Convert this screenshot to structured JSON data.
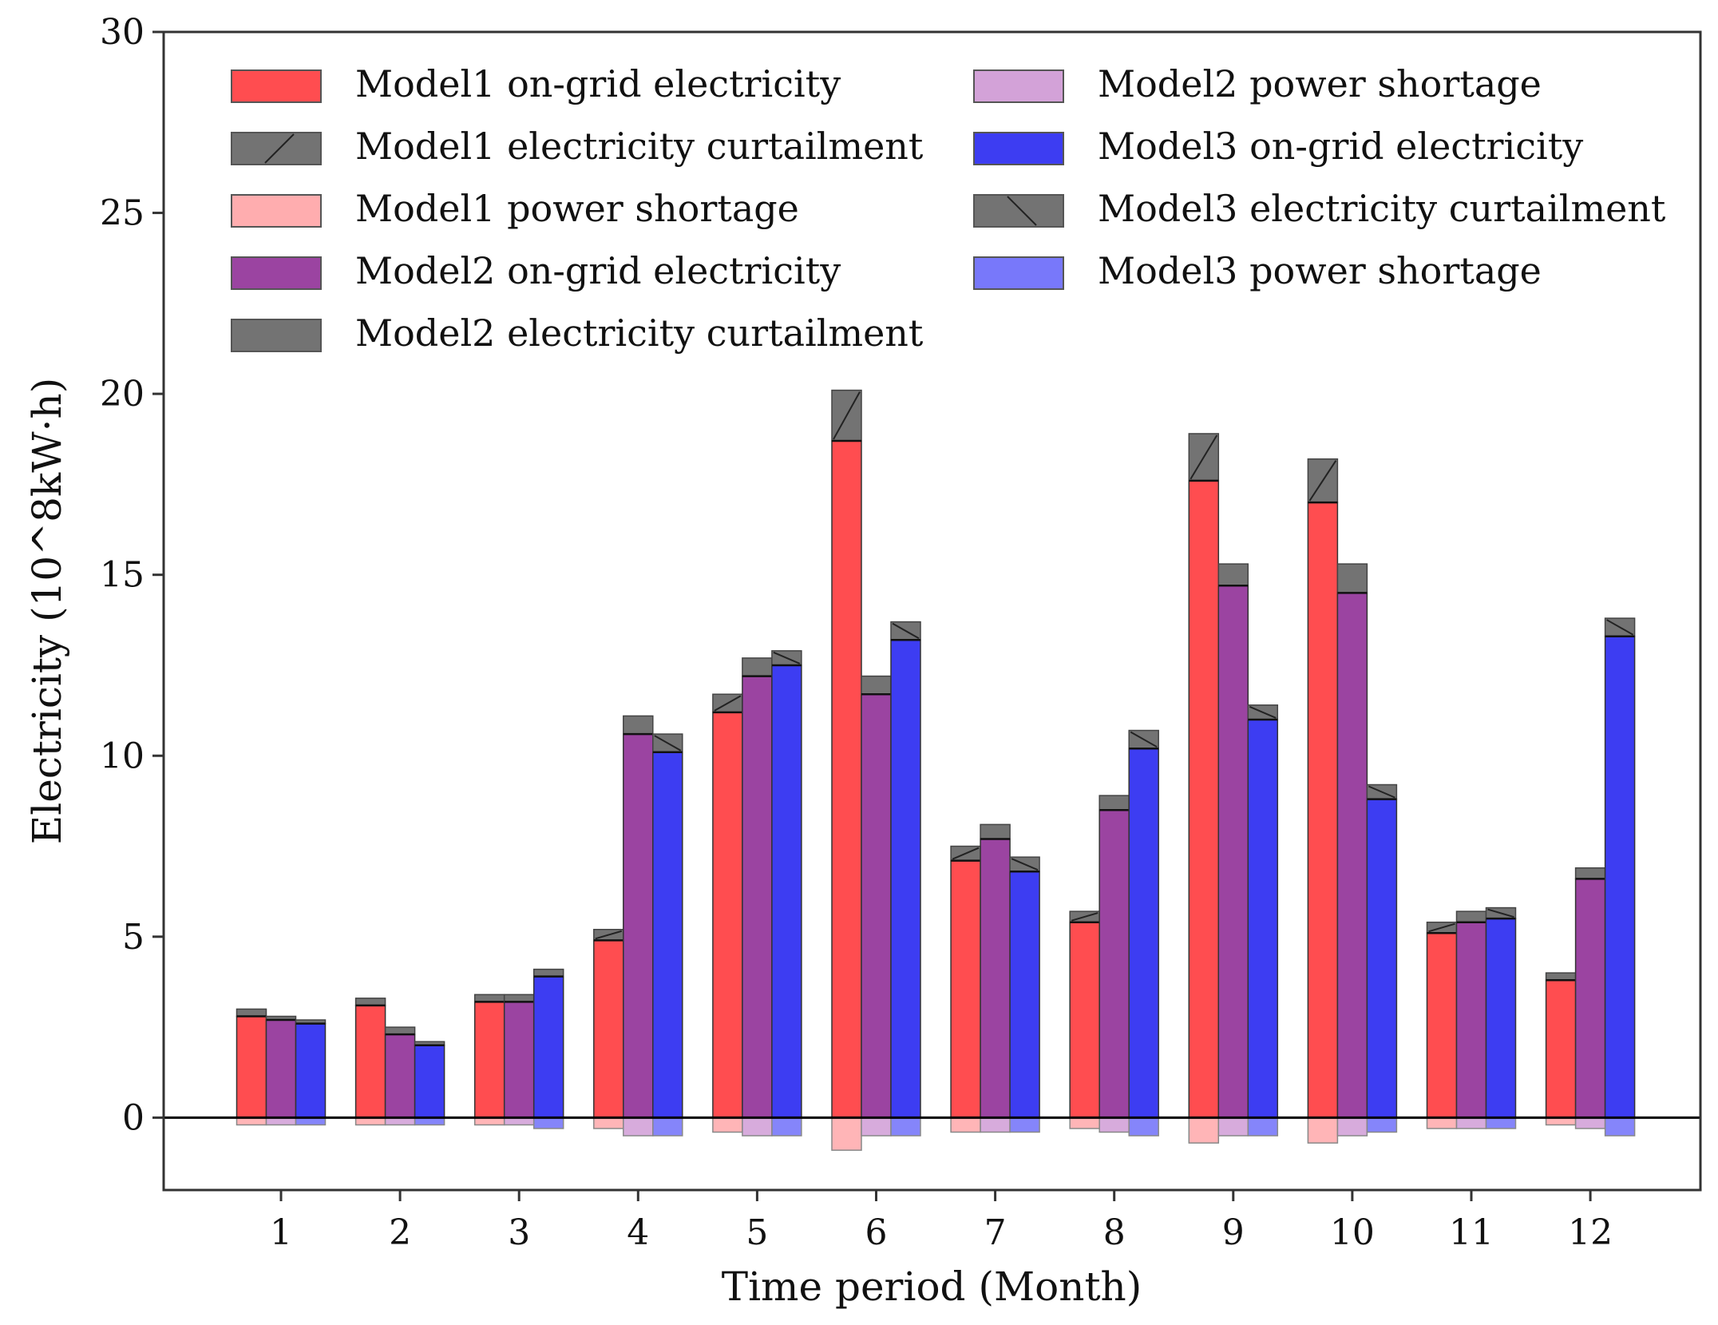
{
  "chart_data": {
    "type": "bar",
    "stacked": true,
    "xlabel": "Time period (Month)",
    "ylabel": "Electricity (10^8kW·h)",
    "ylim": [
      -2,
      30
    ],
    "yticks": [
      0,
      5,
      10,
      15,
      20,
      25,
      30
    ],
    "categories": [
      "1",
      "2",
      "3",
      "4",
      "5",
      "6",
      "7",
      "8",
      "9",
      "10",
      "11",
      "12"
    ],
    "legend_position": "top",
    "series": [
      {
        "name": "Model1",
        "on_grid": [
          2.8,
          3.1,
          3.2,
          4.9,
          11.2,
          18.7,
          7.1,
          5.4,
          17.6,
          17.0,
          5.1,
          3.8
        ],
        "curtailment": [
          0.2,
          0.2,
          0.2,
          0.3,
          0.5,
          1.4,
          0.4,
          0.3,
          1.3,
          1.2,
          0.3,
          0.2
        ],
        "shortage": [
          -0.2,
          -0.2,
          -0.2,
          -0.3,
          -0.4,
          -0.9,
          -0.4,
          -0.3,
          -0.7,
          -0.7,
          -0.3,
          -0.2
        ]
      },
      {
        "name": "Model2",
        "on_grid": [
          2.7,
          2.3,
          3.2,
          10.6,
          12.2,
          11.7,
          7.7,
          8.5,
          14.7,
          14.5,
          5.4,
          6.6
        ],
        "curtailment": [
          0.1,
          0.2,
          0.2,
          0.5,
          0.5,
          0.5,
          0.4,
          0.4,
          0.6,
          0.8,
          0.3,
          0.3
        ],
        "shortage": [
          -0.2,
          -0.2,
          -0.2,
          -0.5,
          -0.5,
          -0.5,
          -0.4,
          -0.4,
          -0.5,
          -0.5,
          -0.3,
          -0.3
        ]
      },
      {
        "name": "Model3",
        "on_grid": [
          2.6,
          2.0,
          3.9,
          10.1,
          12.5,
          13.2,
          6.8,
          10.2,
          11.0,
          8.8,
          5.5,
          13.3
        ],
        "curtailment": [
          0.1,
          0.1,
          0.2,
          0.5,
          0.4,
          0.5,
          0.4,
          0.5,
          0.4,
          0.4,
          0.3,
          0.5
        ],
        "shortage": [
          -0.2,
          -0.2,
          -0.3,
          -0.5,
          -0.5,
          -0.5,
          -0.4,
          -0.5,
          -0.5,
          -0.4,
          -0.3,
          -0.5
        ]
      }
    ],
    "legend": [
      {
        "label": "Model1 on-grid electricity",
        "color": "#ff4d50",
        "hatch": "none"
      },
      {
        "label": "Model1 electricity curtailment",
        "color": "#737373",
        "hatch": "slash"
      },
      {
        "label": "Model1 power shortage",
        "color": "#ffadaf",
        "hatch": "none"
      },
      {
        "label": "Model2 on-grid electricity",
        "color": "#9b44a1",
        "hatch": "none"
      },
      {
        "label": "Model2 electricity curtailment",
        "color": "#737373",
        "hatch": "none"
      },
      {
        "label": "Model2 power shortage",
        "color": "#d3a2d8",
        "hatch": "none"
      },
      {
        "label": "Model3 on-grid electricity",
        "color": "#3d3df2",
        "hatch": "none"
      },
      {
        "label": "Model3 electricity curtailment",
        "color": "#737373",
        "hatch": "backslash"
      },
      {
        "label": "Model3 power shortage",
        "color": "#7878fa",
        "hatch": "none"
      }
    ],
    "colors": {
      "on_grid": [
        "#ff4d50",
        "#9b44a1",
        "#3d3df2"
      ],
      "curtailment": [
        "#737373",
        "#737373",
        "#737373"
      ],
      "shortage": [
        "#ffadaf",
        "#d3a2d8",
        "#7878fa"
      ],
      "hatch": [
        "slash",
        "none",
        "backslash"
      ]
    }
  }
}
